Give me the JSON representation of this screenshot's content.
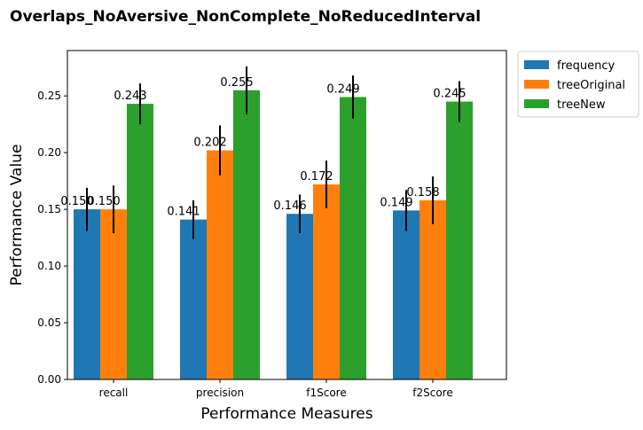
{
  "chart_data": {
    "type": "bar",
    "title": "Overlaps_NoAversive_NonComplete_NoReducedInterval",
    "xlabel": "Performance Measures",
    "ylabel": "Performance Value",
    "categories": [
      "recall",
      "precision",
      "f1Score",
      "f2Score"
    ],
    "ylim": [
      0,
      0.29
    ],
    "yticks": [
      "0.00",
      "0.05",
      "0.10",
      "0.15",
      "0.20",
      "0.25"
    ],
    "grid": false,
    "legend_position": "outside-top-right",
    "series": [
      {
        "name": "frequency",
        "color": "#1f77b4",
        "values": [
          0.15,
          0.141,
          0.146,
          0.149
        ],
        "errors": [
          0.019,
          0.017,
          0.017,
          0.018
        ],
        "labels": [
          "0.150",
          "0.141",
          "0.146",
          "0.149"
        ]
      },
      {
        "name": "treeOriginal",
        "color": "#ff7f0e",
        "values": [
          0.15,
          0.202,
          0.172,
          0.158
        ],
        "errors": [
          0.021,
          0.022,
          0.021,
          0.021
        ],
        "labels": [
          "0.150",
          "0.202",
          "0.172",
          "0.158"
        ]
      },
      {
        "name": "treeNew",
        "color": "#2ca02c",
        "values": [
          0.243,
          0.255,
          0.249,
          0.245
        ],
        "errors": [
          0.018,
          0.021,
          0.019,
          0.018
        ],
        "labels": [
          "0.243",
          "0.255",
          "0.249",
          "0.245"
        ]
      }
    ]
  }
}
